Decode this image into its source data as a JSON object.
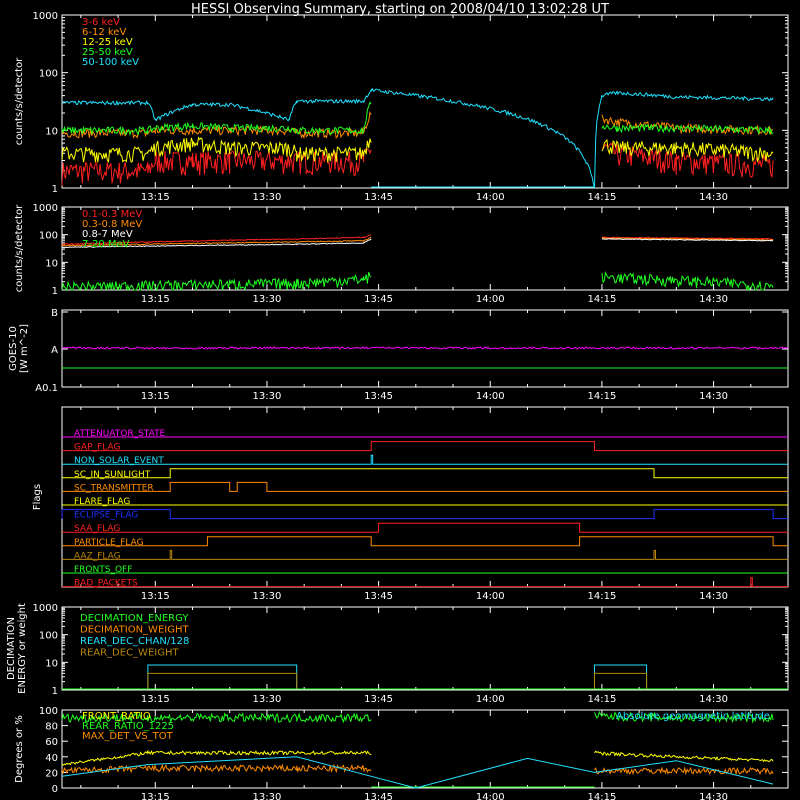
{
  "title": "HESSI Observing Summary, starting on 2008/04/10 13:02:28 UT",
  "x_ticks": [
    "13:15",
    "13:30",
    "13:45",
    "14:00",
    "14:15",
    "14:30"
  ],
  "colors": {
    "red": "#ff2020",
    "orange": "#ff8c00",
    "yellow": "#ffff00",
    "green": "#20ff20",
    "cyan": "#20e0ff",
    "magenta": "#ff00ff",
    "blue": "#2030ff",
    "olive": "#b8860b",
    "white": "#ffffff",
    "black": "#000000"
  },
  "chart_data": [
    {
      "type": "line",
      "panel": "low_energy",
      "ylabel": "counts/s/detector",
      "ylog": true,
      "ylim": [
        1,
        1000
      ],
      "y_ticks": [
        "1",
        "10",
        "100",
        "1000"
      ],
      "legend_position": "top-left",
      "x": [
        "13:02:28",
        "13:14",
        "13:15",
        "13:20",
        "13:25",
        "13:33",
        "13:34",
        "13:43",
        "13:44",
        "14:14",
        "14:15",
        "14:17",
        "14:25",
        "14:38"
      ],
      "series": [
        {
          "name": "3-6 keV",
          "color": "red",
          "values": [
            2,
            2,
            3,
            3,
            3,
            3,
            3,
            3,
            5,
            null,
            5,
            4,
            3,
            2.5
          ]
        },
        {
          "name": "6-12 keV",
          "color": "orange",
          "values": [
            9,
            9,
            10,
            10,
            10,
            10,
            9,
            9,
            20,
            null,
            16,
            14,
            11,
            10
          ]
        },
        {
          "name": "12-25 keV",
          "color": "yellow",
          "values": [
            4,
            4,
            5,
            6,
            5,
            5,
            4,
            4,
            8,
            null,
            6,
            5,
            5,
            4
          ]
        },
        {
          "name": "25-50 keV",
          "color": "green",
          "values": [
            10,
            10,
            11,
            12,
            11,
            11,
            10,
            10,
            30,
            null,
            12,
            11,
            11,
            10
          ]
        },
        {
          "name": "50-100 keV",
          "color": "cyan",
          "values": [
            30,
            30,
            15,
            28,
            28,
            15,
            32,
            32,
            50,
            1,
            40,
            45,
            38,
            35
          ]
        }
      ]
    },
    {
      "type": "line",
      "panel": "high_energy",
      "ylabel": "counts/s/detector",
      "ylog": true,
      "ylim": [
        1,
        1000
      ],
      "y_ticks": [
        "1",
        "10",
        "100",
        "1000"
      ],
      "legend_position": "top-left",
      "x": [
        "13:02:28",
        "13:34",
        "13:43",
        "13:44",
        "14:14",
        "14:15",
        "14:38"
      ],
      "series": [
        {
          "name": "0.1-0.3 MeV",
          "color": "red",
          "values": [
            45,
            70,
            80,
            100,
            null,
            80,
            70
          ]
        },
        {
          "name": "0.3-0.8 MeV",
          "color": "orange",
          "values": [
            40,
            55,
            60,
            80,
            null,
            75,
            65
          ]
        },
        {
          "name": "0.8-7 MeV",
          "color": "white",
          "values": [
            35,
            45,
            50,
            70,
            null,
            70,
            60
          ]
        },
        {
          "name": "7-20 MeV",
          "color": "green",
          "values": [
            1.3,
            1.8,
            2.5,
            3.5,
            null,
            3,
            1.4
          ]
        }
      ]
    },
    {
      "type": "line",
      "panel": "goes",
      "ylabel": "GOES-10 [W m^-2]",
      "y_ticks": [
        "A0.1",
        "A",
        "B"
      ],
      "series": [
        {
          "name": "",
          "color": "magenta",
          "level": "A"
        },
        {
          "name": "",
          "color": "green",
          "level": "below A"
        }
      ]
    },
    {
      "type": "line",
      "panel": "flags",
      "ylabel": "Flags",
      "flags": [
        {
          "name": "ATTENUATOR_STATE",
          "color": "magenta",
          "on": []
        },
        {
          "name": "GAP_FLAG",
          "color": "red",
          "on": [
            [
              "13:44",
              "14:14"
            ]
          ]
        },
        {
          "name": "NON_SOLAR_EVENT",
          "color": "cyan",
          "on": [
            [
              "13:44",
              "13:44"
            ]
          ]
        },
        {
          "name": "SC_IN_SUNLIGHT",
          "color": "yellow",
          "on": [
            [
              "13:17",
              "14:22"
            ]
          ]
        },
        {
          "name": "SC_TRANSMITTER",
          "color": "orange",
          "on": [
            [
              "13:17",
              "13:25"
            ],
            [
              "13:26",
              "13:30"
            ]
          ]
        },
        {
          "name": "FLARE_FLAG",
          "color": "yellow",
          "on": []
        },
        {
          "name": "ECLIPSE_FLAG",
          "color": "blue",
          "on": [
            [
              "13:02:28",
              "13:17"
            ],
            [
              "14:22",
              "14:38"
            ]
          ]
        },
        {
          "name": "SAA_FLAG",
          "color": "red",
          "on": [
            [
              "13:45",
              "14:12"
            ]
          ]
        },
        {
          "name": "PARTICLE_FLAG",
          "color": "orange",
          "on": [
            [
              "13:22",
              "13:44"
            ],
            [
              "14:12",
              "14:38"
            ]
          ]
        },
        {
          "name": "AAZ_FLAG",
          "color": "olive",
          "on": [
            [
              "13:17",
              "13:17"
            ],
            [
              "14:22",
              "14:22"
            ]
          ]
        },
        {
          "name": "FRONTS_OFF",
          "color": "green",
          "on": []
        },
        {
          "name": "BAD_PACKETS",
          "color": "red",
          "on": [
            [
              "14:35",
              "14:35"
            ]
          ]
        }
      ]
    },
    {
      "type": "line",
      "panel": "decimation",
      "ylabel": "DECIMATION ENERGY or weight",
      "ylog": true,
      "ylim": [
        1,
        1000
      ],
      "y_ticks": [
        "1",
        "10",
        "100",
        "1000"
      ],
      "legend_position": "top-left",
      "series": [
        {
          "name": "DECIMATION_ENERGY",
          "color": "green",
          "value": 1
        },
        {
          "name": "DECIMATION_WEIGHT",
          "color": "orange",
          "value": 1
        },
        {
          "name": "REAR_DEC_CHAN/128",
          "color": "cyan",
          "intervals": [
            [
              "13:14",
              "13:34",
              8
            ],
            [
              "14:14",
              "14:21",
              8
            ]
          ]
        },
        {
          "name": "REAR_DEC_WEIGHT",
          "color": "olive",
          "intervals": [
            [
              "13:14",
              "13:34",
              4
            ],
            [
              "14:14",
              "14:21",
              4
            ]
          ]
        }
      ]
    },
    {
      "type": "line",
      "panel": "ratios",
      "ylabel": "Degrees or %",
      "ylim": [
        0,
        100
      ],
      "y_ticks": [
        "0",
        "20",
        "40",
        "60",
        "80",
        "100"
      ],
      "legend_position": "top-left",
      "annotation": "Absolute geomagnetic latitude",
      "x": [
        "13:02:28",
        "13:14",
        "13:34",
        "13:44",
        "13:50",
        "14:05",
        "14:14",
        "14:25",
        "14:38"
      ],
      "series": [
        {
          "name": "FRONT_RATIO",
          "color": "yellow",
          "values": [
            30,
            45,
            45,
            45,
            null,
            null,
            45,
            40,
            35
          ]
        },
        {
          "name": "REAR_RATIO_1225",
          "color": "green",
          "values": [
            90,
            90,
            90,
            90,
            null,
            null,
            92,
            90,
            90
          ]
        },
        {
          "name": "MAX_DET_VS_TOT",
          "color": "orange",
          "values": [
            22,
            25,
            25,
            25,
            null,
            null,
            22,
            22,
            22
          ]
        },
        {
          "name": "Absolute geomagnetic latitude",
          "color": "cyan",
          "values": [
            15,
            30,
            40,
            15,
            0,
            38,
            20,
            35,
            5
          ]
        }
      ]
    }
  ]
}
